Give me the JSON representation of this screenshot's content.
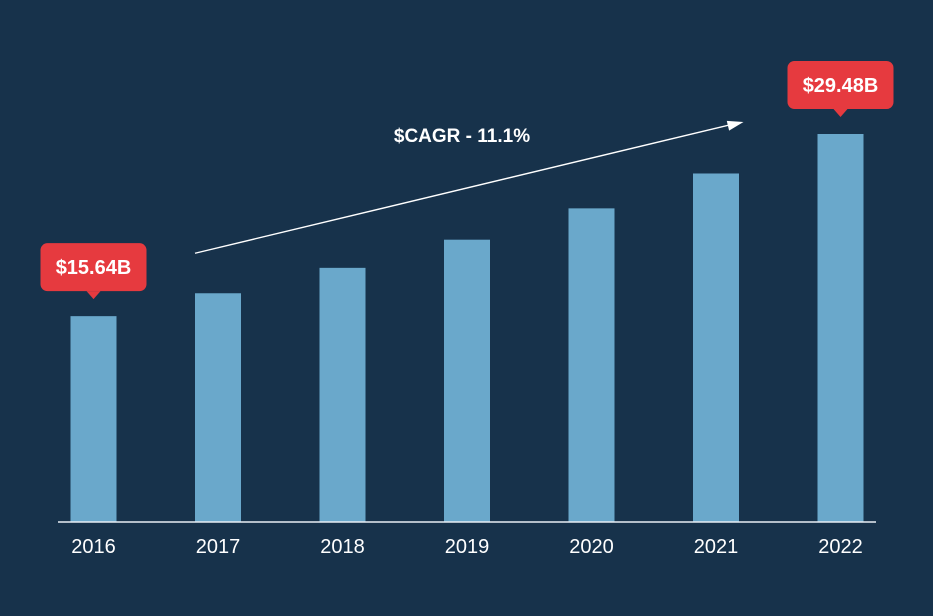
{
  "chart_data": {
    "type": "bar",
    "title": "",
    "xlabel": "",
    "ylabel": "",
    "categories": [
      "2016",
      "2017",
      "2018",
      "2019",
      "2020",
      "2021",
      "2022"
    ],
    "values": [
      15.64,
      17.38,
      19.31,
      21.45,
      23.83,
      26.48,
      29.48
    ],
    "ylim": [
      0,
      29.48
    ],
    "grid": false,
    "legend": "none",
    "data_labels": [
      {
        "category": "2016",
        "text": "$15.64B"
      },
      {
        "category": "2022",
        "text": "$29.48B"
      }
    ],
    "annotation": {
      "text": "$CAGR - 11.1%",
      "arrow_from": "2017",
      "arrow_to": "2022"
    }
  },
  "colors": {
    "background": "#17324b",
    "bar": "#6aa8cb",
    "axis": "#e8eef4",
    "callout": "#e63a3f",
    "text": "#ffffff"
  }
}
